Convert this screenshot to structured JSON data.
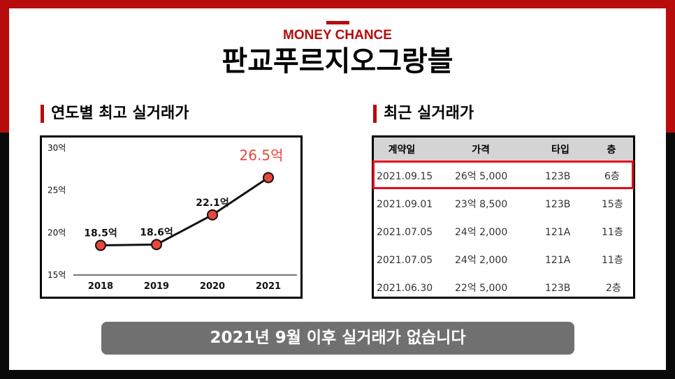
{
  "brand": "MONEY CHANCE",
  "title": "판교푸르지오그랑블",
  "chart_section": {
    "title": "연도별 최고 실거래가"
  },
  "table_section": {
    "title": "최근 실거래가"
  },
  "chart_data": {
    "type": "line",
    "categories": [
      "2018",
      "2019",
      "2020",
      "2021"
    ],
    "values": [
      18.5,
      18.6,
      22.1,
      26.5
    ],
    "data_labels": [
      "18.5억",
      "18.6억",
      "22.1억",
      "26.5억"
    ],
    "ylim": [
      15,
      30
    ],
    "yticks": [
      15,
      20,
      25,
      30
    ],
    "ytick_labels": [
      "15억",
      "20억",
      "25억",
      "30억"
    ],
    "highlight_index": 3,
    "line_color": "#111111",
    "marker_color": "#e8473a",
    "highlight_color": "#e8473a",
    "grid": false
  },
  "table": {
    "headers": [
      "계약일",
      "가격",
      "타입",
      "층"
    ],
    "rows": [
      [
        "2021.09.15",
        "26억 5,000",
        "123B",
        "6층"
      ],
      [
        "2021.09.01",
        "23억 8,500",
        "123B",
        "15층"
      ],
      [
        "2021.07.05",
        "24억 2,000",
        "121A",
        "11층"
      ],
      [
        "2021.07.05",
        "24억 2,000",
        "121A",
        "11층"
      ],
      [
        "2021.06.30",
        "22억 5,000",
        "123B",
        "2층"
      ]
    ],
    "highlight_row": 0,
    "highlight_color": "#e8091b"
  },
  "banner": "2021년 9월 이후 실거래가 없습니다",
  "colors": {
    "accent": "#b80b0b",
    "banner_bg": "#707070",
    "header_bg": "#d4d4d4"
  }
}
